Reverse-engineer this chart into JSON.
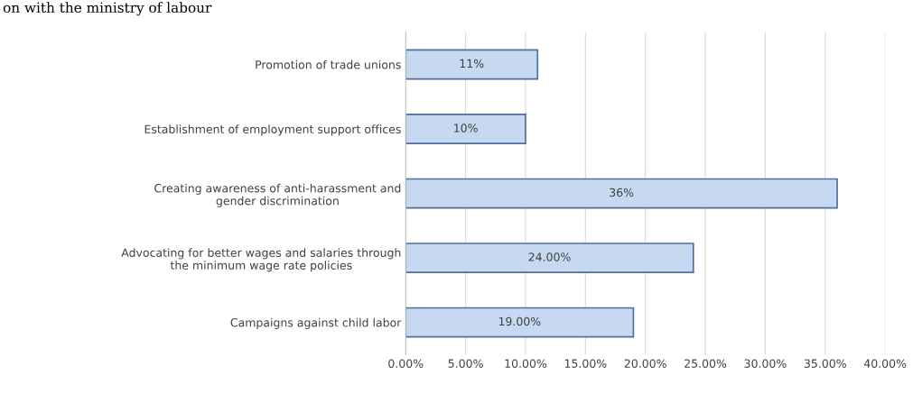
{
  "chart_data": {
    "type": "bar",
    "orientation": "horizontal",
    "categories": [
      "Promotion of trade unions",
      "Establishment of employment support offices",
      "Creating awareness of anti-harassment and gender discrimination",
      "Advocating for better wages and salaries through the minimum wage rate policies",
      "Campaigns against child labor"
    ],
    "values": [
      11,
      10,
      36,
      24,
      19
    ],
    "value_labels": [
      "11%",
      "10%",
      "36%",
      "24.00%",
      "19.00%"
    ],
    "color": "#c6d9f1",
    "xlim": [
      0,
      40
    ],
    "xticks": [
      {
        "value": 0,
        "label": "0.00%"
      },
      {
        "value": 5,
        "label": "5.00%"
      },
      {
        "value": 10,
        "label": "10.00%"
      },
      {
        "value": 15,
        "label": "15.00%"
      },
      {
        "value": 20,
        "label": "20.00%"
      },
      {
        "value": 25,
        "label": "25.00%"
      },
      {
        "value": 30,
        "label": "30.00%"
      },
      {
        "value": 35,
        "label": "35.00%"
      },
      {
        "value": 40,
        "label": "40.00%"
      }
    ],
    "grid": "x",
    "annotations": [
      "on with the ministry of labour"
    ]
  }
}
